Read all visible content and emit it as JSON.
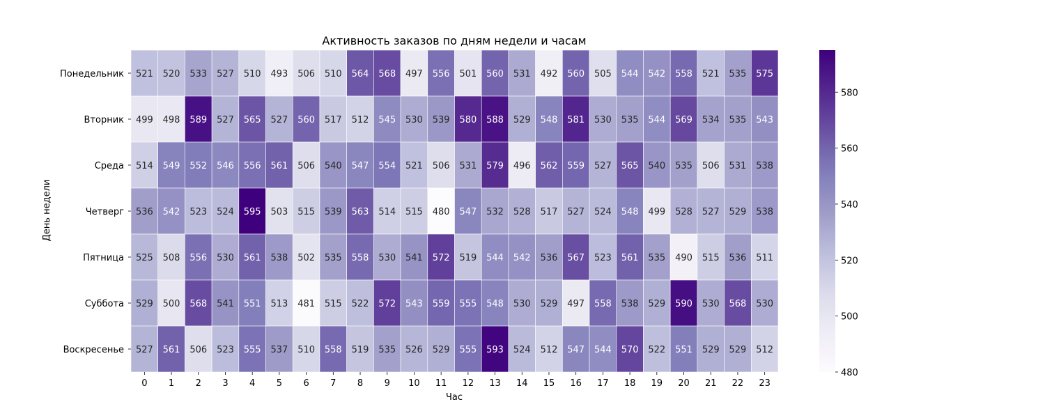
{
  "chart_data": {
    "type": "heatmap",
    "title": "Активность заказов по дням недели и часам",
    "xlabel": "Час",
    "ylabel": "День недели",
    "x_categories": [
      "0",
      "1",
      "2",
      "3",
      "4",
      "5",
      "6",
      "7",
      "8",
      "9",
      "10",
      "11",
      "12",
      "13",
      "14",
      "15",
      "16",
      "17",
      "18",
      "19",
      "20",
      "21",
      "22",
      "23"
    ],
    "y_categories": [
      "Понедельник",
      "Вторник",
      "Среда",
      "Четверг",
      "Пятница",
      "Суббота",
      "Воскресенье"
    ],
    "values": [
      [
        521,
        520,
        533,
        527,
        510,
        493,
        506,
        510,
        564,
        568,
        497,
        556,
        501,
        560,
        531,
        492,
        560,
        505,
        544,
        542,
        558,
        521,
        535,
        575
      ],
      [
        499,
        498,
        589,
        527,
        565,
        527,
        560,
        517,
        512,
        545,
        530,
        539,
        580,
        588,
        529,
        548,
        581,
        530,
        535,
        544,
        569,
        534,
        535,
        543
      ],
      [
        514,
        549,
        552,
        546,
        556,
        561,
        506,
        540,
        547,
        554,
        521,
        506,
        531,
        579,
        496,
        562,
        559,
        527,
        565,
        540,
        535,
        506,
        531,
        538
      ],
      [
        536,
        542,
        523,
        524,
        595,
        503,
        515,
        539,
        563,
        514,
        515,
        480,
        547,
        532,
        528,
        517,
        527,
        524,
        548,
        499,
        528,
        527,
        529,
        538
      ],
      [
        525,
        508,
        556,
        530,
        561,
        538,
        502,
        535,
        558,
        530,
        541,
        572,
        519,
        544,
        542,
        536,
        567,
        523,
        561,
        535,
        490,
        515,
        536,
        511
      ],
      [
        529,
        500,
        568,
        541,
        551,
        513,
        481,
        515,
        522,
        572,
        543,
        559,
        555,
        548,
        530,
        529,
        497,
        558,
        538,
        529,
        590,
        530,
        568,
        530
      ],
      [
        527,
        561,
        506,
        523,
        555,
        537,
        510,
        558,
        519,
        535,
        526,
        529,
        555,
        593,
        524,
        512,
        547,
        544,
        570,
        522,
        551,
        529,
        529,
        512
      ]
    ],
    "colorbar": {
      "colormap": "Purples",
      "vmin": 480,
      "vmax": 595,
      "ticks": [
        480,
        500,
        520,
        540,
        560,
        580
      ]
    },
    "grid": false,
    "annotated": true
  }
}
